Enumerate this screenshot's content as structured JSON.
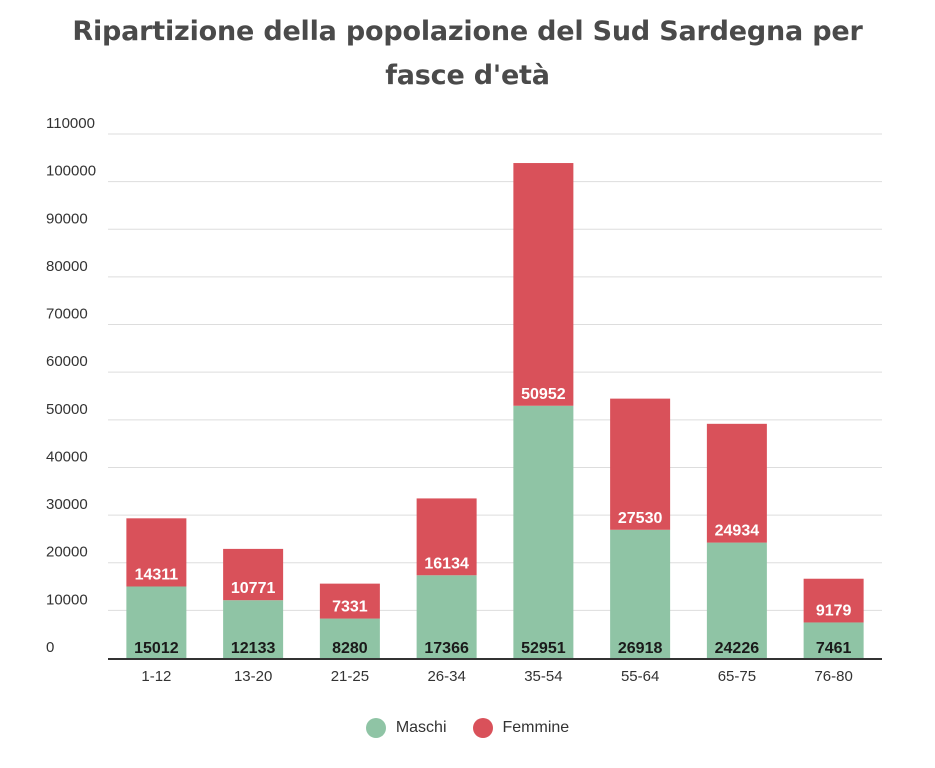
{
  "chart_data": {
    "type": "bar",
    "stacked": true,
    "title": "Ripartizione della popolazione del Sud Sardegna per fasce d'età",
    "xlabel": "",
    "ylabel": "",
    "categories": [
      "1-12",
      "13-20",
      "21-25",
      "26-34",
      "35-54",
      "55-64",
      "65-75",
      "76-80"
    ],
    "series": [
      {
        "name": "Maschi",
        "color": "#8fc4a5",
        "values": [
          15012,
          12133,
          8280,
          17366,
          52951,
          26918,
          24226,
          7461
        ]
      },
      {
        "name": "Femmine",
        "color": "#d9515a",
        "values": [
          14311,
          10771,
          7331,
          16134,
          50952,
          27530,
          24934,
          9179
        ]
      }
    ],
    "ylim": [
      0,
      110000
    ],
    "yticks": [
      0,
      10000,
      20000,
      30000,
      40000,
      50000,
      60000,
      70000,
      80000,
      90000,
      100000,
      110000
    ],
    "grid": true,
    "legend_position": "bottom"
  }
}
